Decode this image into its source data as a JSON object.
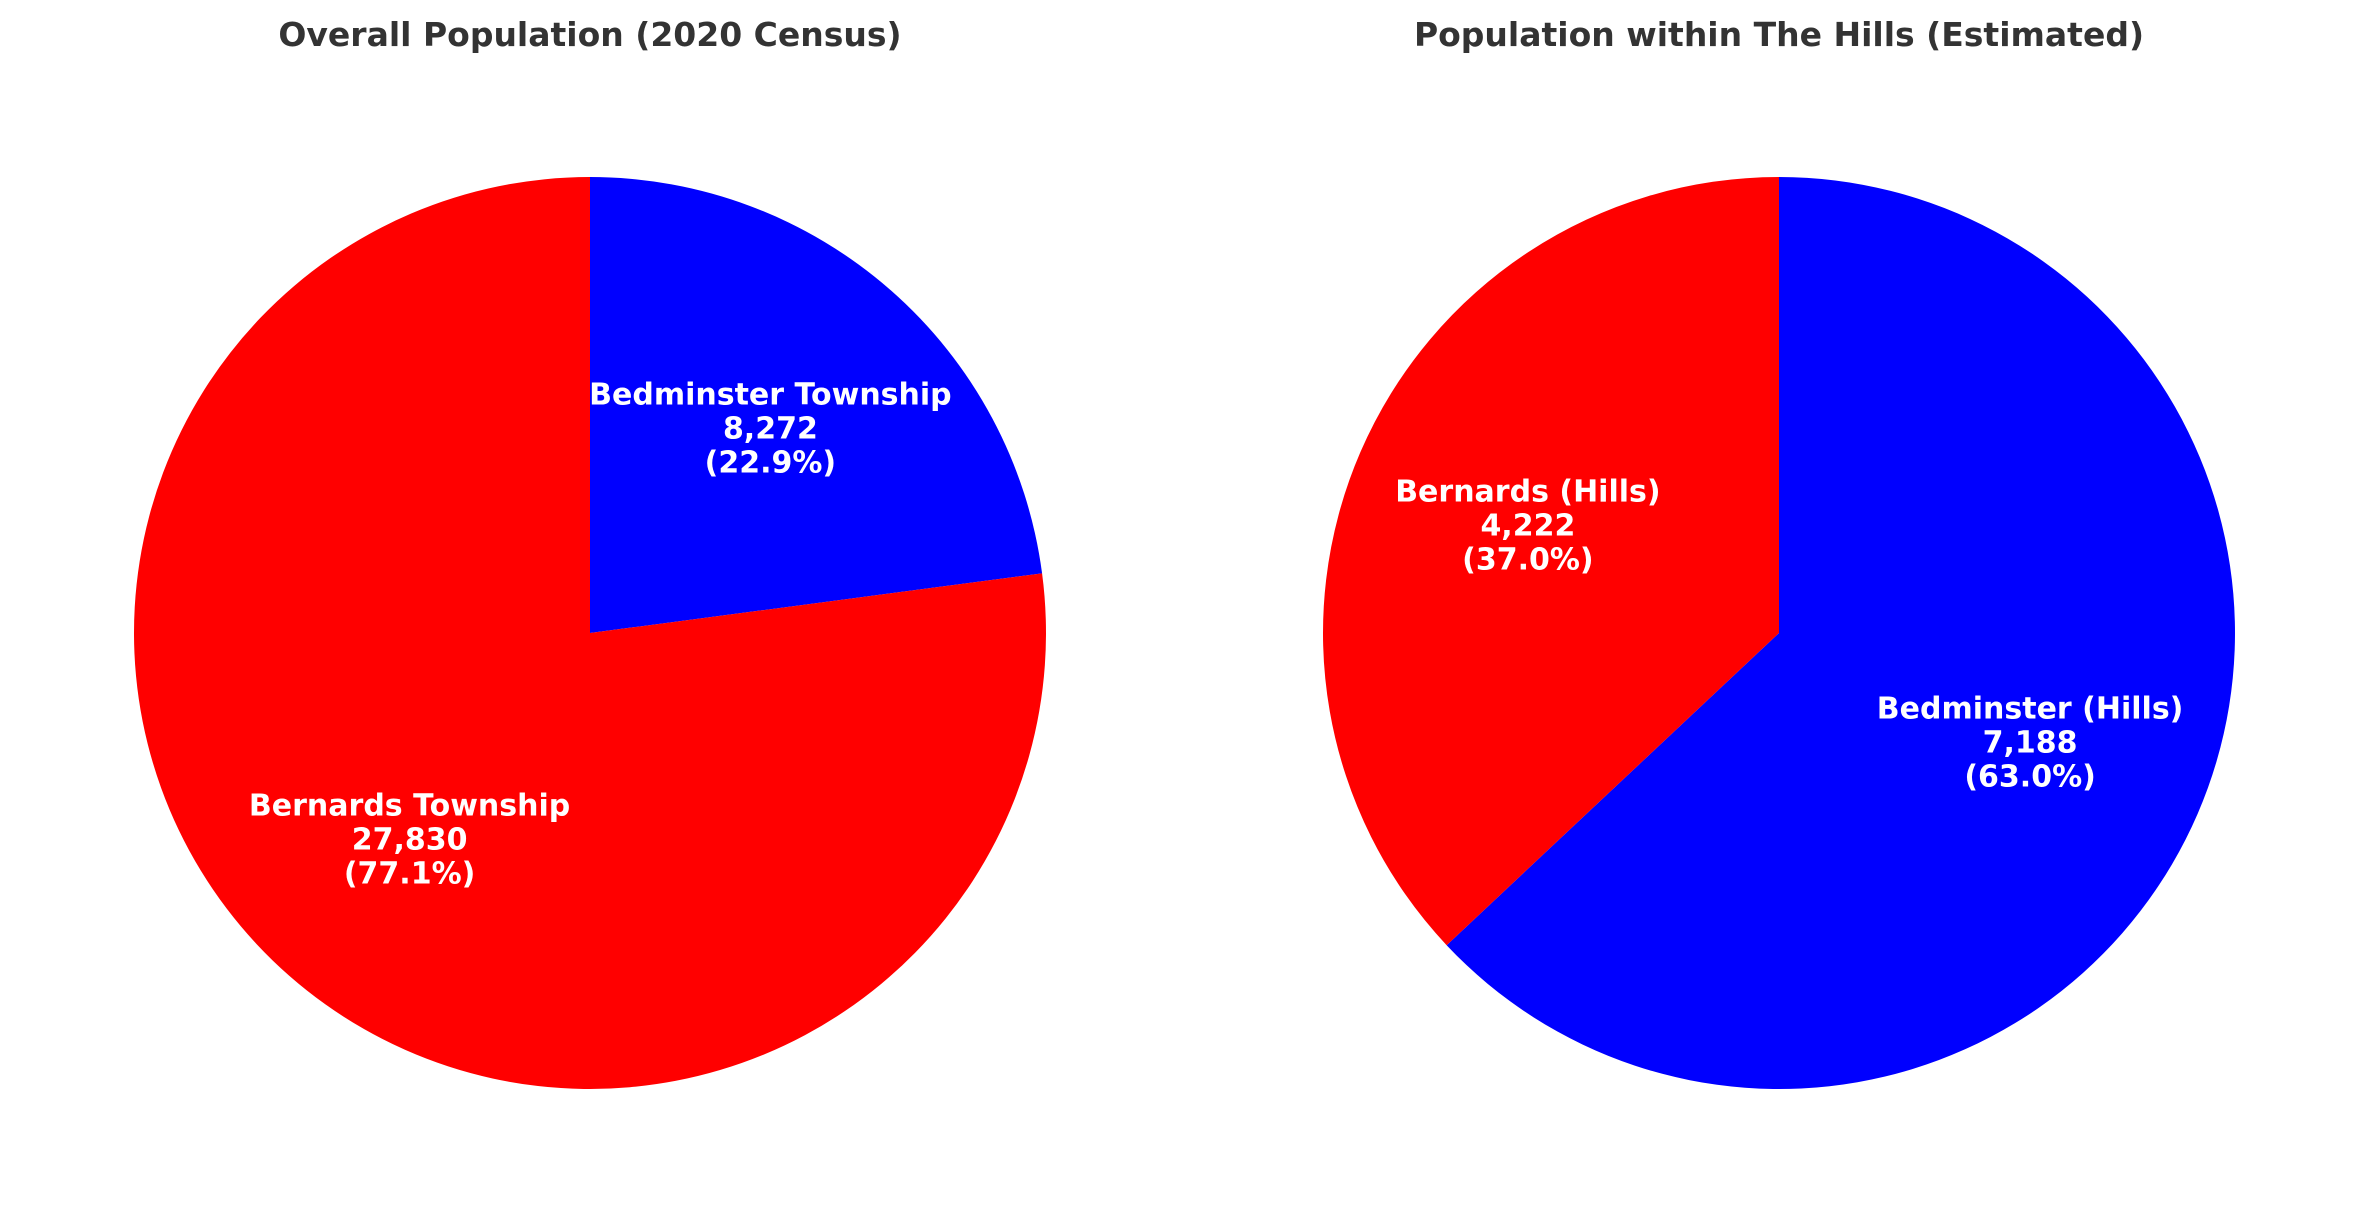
{
  "chart_data": [
    {
      "type": "pie",
      "title": "Overall Population (2020 Census)",
      "series": [
        {
          "slices": [
            {
              "name": "Bedminster Township",
              "value": 8272,
              "value_text": "8,272",
              "pct_text": "(22.9%)",
              "color": "#0000ff"
            },
            {
              "name": "Bernards Township",
              "value": 27830,
              "value_text": "27,830",
              "pct_text": "(77.1%)",
              "color": "#ff0000"
            }
          ]
        }
      ],
      "start_angle": "top (12 o'clock)",
      "direction": "clockwise",
      "legend": "none"
    },
    {
      "type": "pie",
      "title": "Population within The Hills (Estimated)",
      "series": [
        {
          "slices": [
            {
              "name": "Bedminster (Hills)",
              "value": 7188,
              "value_text": "7,188",
              "pct_text": "(63.0%)",
              "color": "#0000ff"
            },
            {
              "name": "Bernards (Hills)",
              "value": 4222,
              "value_text": "4,222",
              "pct_text": "(37.0%)",
              "color": "#ff0000"
            }
          ]
        }
      ],
      "start_angle": "top (12 o'clock)",
      "direction": "clockwise",
      "legend": "none"
    }
  ]
}
